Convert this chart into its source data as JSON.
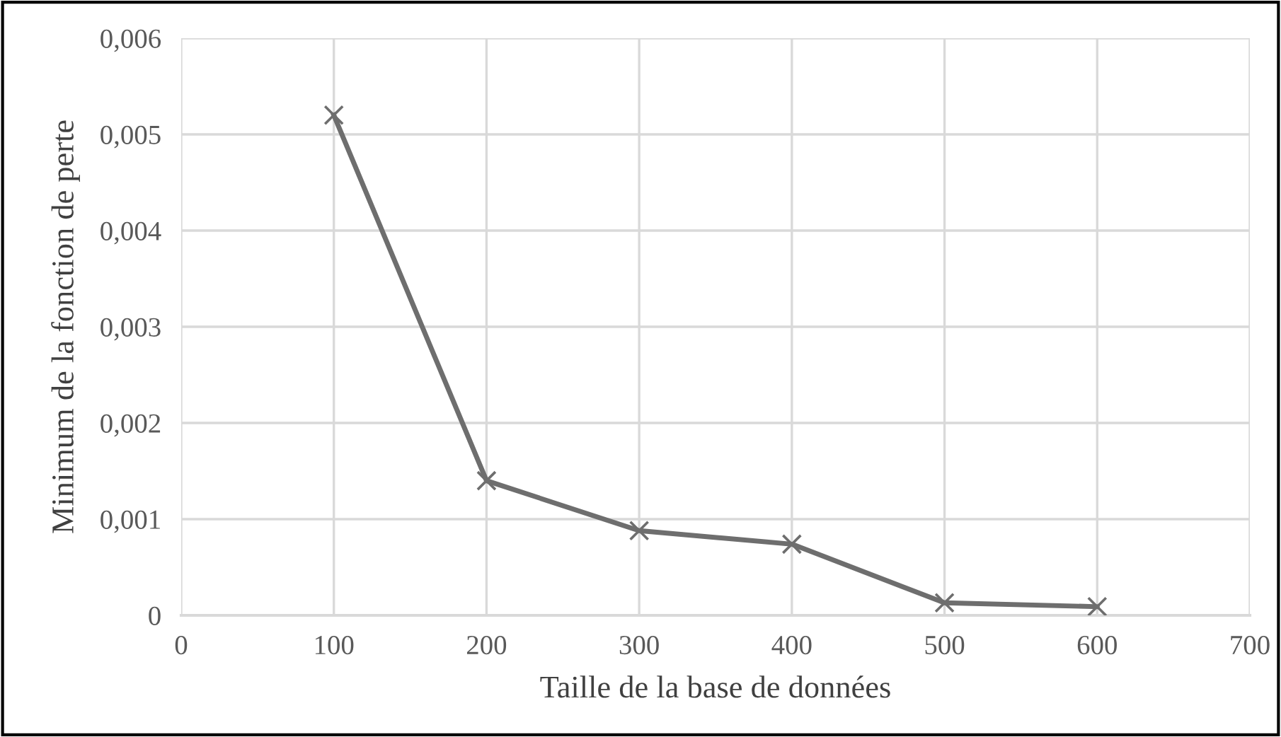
{
  "chart_data": {
    "type": "line",
    "xlabel": "Taille de la base de données",
    "ylabel": "Minimum de la fonction de perte",
    "x": [
      100,
      200,
      300,
      400,
      500,
      600
    ],
    "series": [
      {
        "color": "#6e6e6e",
        "values": [
          0.0052,
          0.0014,
          0.00088,
          0.00074,
          0.00013,
          9e-05
        ]
      }
    ],
    "xlim": [
      0,
      700
    ],
    "xticks": [
      0,
      100,
      200,
      300,
      400,
      500,
      600,
      700
    ],
    "ylim": [
      0,
      0.006
    ],
    "yticks": [
      {
        "value": 0,
        "label": "0"
      },
      {
        "value": 0.001,
        "label": "0,001"
      },
      {
        "value": 0.002,
        "label": "0,002"
      },
      {
        "value": 0.003,
        "label": "0,003"
      },
      {
        "value": 0.004,
        "label": "0,004"
      },
      {
        "value": 0.005,
        "label": "0,005"
      },
      {
        "value": 0.006,
        "label": "0,006"
      }
    ],
    "grid": true,
    "marker": "cross",
    "line_style": "solid",
    "legend": false
  }
}
